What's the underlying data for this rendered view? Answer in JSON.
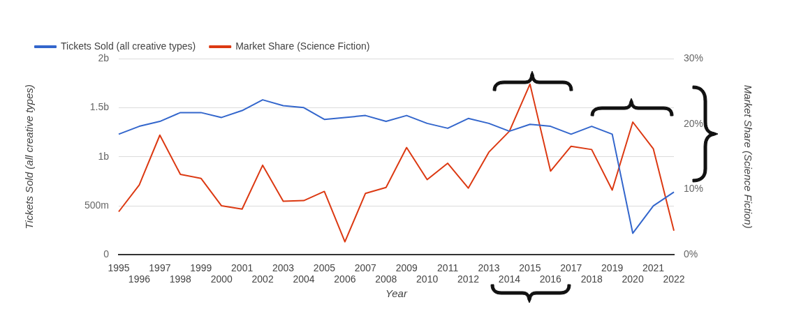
{
  "chart_data": {
    "type": "line",
    "categories": [
      "1995",
      "1996",
      "1997",
      "1998",
      "1999",
      "2000",
      "2001",
      "2002",
      "2003",
      "2004",
      "2005",
      "2006",
      "2007",
      "2008",
      "2009",
      "2010",
      "2011",
      "2012",
      "2013",
      "2014",
      "2015",
      "2016",
      "2017",
      "2018",
      "2019",
      "2020",
      "2021",
      "2022"
    ],
    "series": [
      {
        "name": "Tickets Sold (all creative types)",
        "color": "#3366cc",
        "values": [
          1230000000,
          1310000000,
          1360000000,
          1450000000,
          1450000000,
          1400000000,
          1470000000,
          1580000000,
          1520000000,
          1500000000,
          1380000000,
          1400000000,
          1420000000,
          1360000000,
          1420000000,
          1340000000,
          1290000000,
          1390000000,
          1340000000,
          1260000000,
          1330000000,
          1310000000,
          1230000000,
          1310000000,
          1230000000,
          220000000,
          500000000,
          640000000
        ]
      },
      {
        "name": "Market Share (Science Fiction)",
        "color": "#dc3912",
        "axis": "y2",
        "values": [
          6.6,
          10.7,
          18.3,
          12.3,
          11.7,
          7.5,
          7.0,
          13.7,
          8.2,
          8.3,
          9.7,
          2.0,
          9.4,
          10.3,
          16.4,
          11.5,
          14.0,
          10.2,
          15.7,
          18.9,
          26.1,
          12.8,
          16.6,
          16.1,
          9.9,
          20.3,
          16.2,
          3.7
        ]
      }
    ],
    "xlabel": "Year",
    "ylabel": "Tickets Sold (all creative types)",
    "y2label": "Market Share (Science Fiction)",
    "ylim": [
      0,
      2000000000
    ],
    "yticks": [
      0,
      {
        "value": 500000000,
        "label": "500m"
      },
      {
        "value": 1000000000,
        "label": "1b"
      },
      {
        "value": 1500000000,
        "label": "1.5b"
      },
      {
        "value": 2000000000,
        "label": "2b"
      }
    ],
    "y2lim": [
      0,
      30
    ],
    "y2ticks": [
      {
        "value": 0,
        "label": "0%"
      },
      {
        "value": 10,
        "label": "10%"
      },
      {
        "value": 20,
        "label": "20%"
      },
      {
        "value": 30,
        "label": "30%"
      }
    ],
    "grid": "y",
    "legend": "top left",
    "marker": "none",
    "line_style": "solid"
  }
}
